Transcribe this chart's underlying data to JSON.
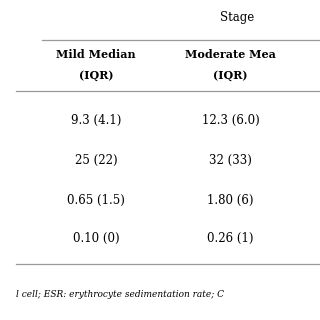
{
  "title_text": "Stage",
  "col1_header_line1": "Mild Median",
  "col1_header_line2": "(IQR)",
  "col2_header_line1": "Moderate Mea",
  "col2_header_line2": "(IQR)",
  "rows": [
    [
      "9.3 (4.1)",
      "12.3 (6.0)"
    ],
    [
      "25 (22)",
      "32 (33)"
    ],
    [
      "0.65 (1.5)",
      "1.80 (6)"
    ],
    [
      "0.10 (0)",
      "0.26 (1)"
    ]
  ],
  "footer_text": "l cell; ESR: erythrocyte sedimentation rate; C",
  "bg_color": "#ffffff",
  "text_color": "#000000",
  "line_color": "#999999",
  "header_fontsize": 8.0,
  "data_fontsize": 8.5,
  "footer_fontsize": 6.5,
  "title_fontsize": 8.5
}
